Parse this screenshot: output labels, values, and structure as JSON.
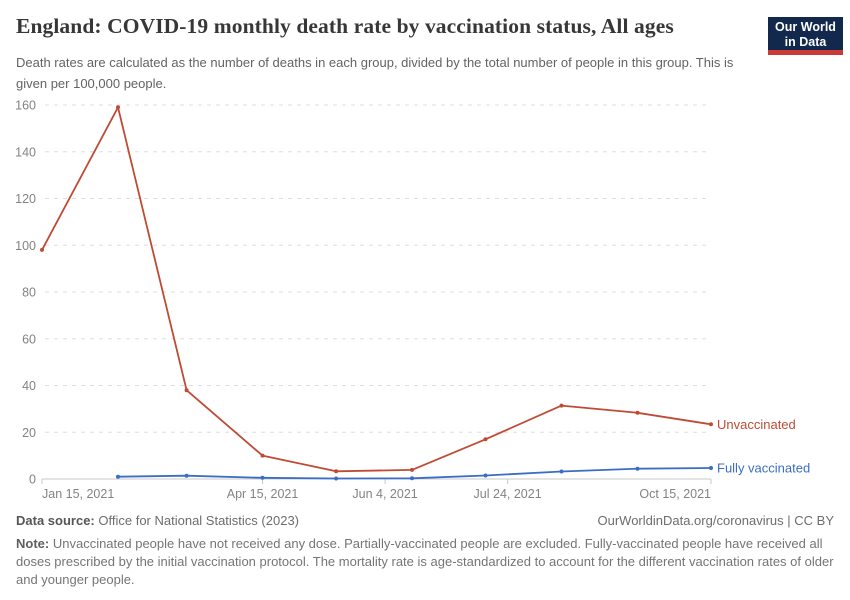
{
  "header": {
    "title": "England: COVID-19 monthly death rate by vaccination status, All ages",
    "subtitle": "Death rates are calculated as the number of deaths in each group, divided by the total number of people in this group. This is given per 100,000 people.",
    "logo": {
      "line1": "Our World",
      "line2": "in Data",
      "bg_color": "#12284C",
      "accent_color": "#CC3A36"
    }
  },
  "chart_data": {
    "type": "line",
    "title": "England: COVID-19 monthly death rate by vaccination status, All ages",
    "ylabel": "",
    "xlabel": "",
    "ylim": [
      0,
      160
    ],
    "y_ticks": [
      0,
      20,
      40,
      60,
      80,
      100,
      120,
      140,
      160
    ],
    "grid": "horizontal dashed",
    "legend_position": "right-of-line-end",
    "x_dates": [
      "Jan 15, 2021",
      "Feb 15, 2021",
      "Mar 15, 2021",
      "Apr 15, 2021",
      "May 15, 2021",
      "Jun 15, 2021",
      "Jul 15, 2021",
      "Aug 15, 2021",
      "Sep 15, 2021",
      "Oct 15, 2021"
    ],
    "x_days": [
      0,
      31,
      59,
      90,
      120,
      151,
      181,
      212,
      243,
      273
    ],
    "x_ticks": [
      {
        "label": "Jan 15, 2021",
        "day": 0,
        "align": "start"
      },
      {
        "label": "Apr 15, 2021",
        "day": 90,
        "align": "middle"
      },
      {
        "label": "Jun 4, 2021",
        "day": 140,
        "align": "middle"
      },
      {
        "label": "Jul 24, 2021",
        "day": 190,
        "align": "middle"
      },
      {
        "label": "Oct 15, 2021",
        "day": 273,
        "align": "end"
      }
    ],
    "series": [
      {
        "name": "Unvaccinated",
        "color": "#C04B35",
        "start_index": 0,
        "values": [
          98,
          159,
          38,
          10,
          3.3,
          3.9,
          17,
          31.4,
          28.3,
          23.4
        ]
      },
      {
        "name": "Fully vaccinated",
        "color": "#3C6DC6",
        "start_index": 1,
        "values": [
          1.0,
          1.4,
          0.5,
          0.2,
          0.3,
          1.5,
          3.2,
          4.4,
          4.7
        ]
      }
    ],
    "colors": {
      "gridline": "#dedede",
      "axis": "#c8c8c8",
      "tick_label": "#838383"
    }
  },
  "footer": {
    "source_label": "Data source:",
    "source_value": "Office for National Statistics (2023)",
    "link": "OurWorldinData.org/coronavirus | CC BY",
    "note_label": "Note:",
    "note_text": "Unvaccinated people have not received any dose. Partially-vaccinated people are excluded. Fully-vaccinated people have received all doses prescribed by the initial vaccination protocol. The mortality rate is age-standardized to account for the different vaccination rates of older and younger people."
  }
}
